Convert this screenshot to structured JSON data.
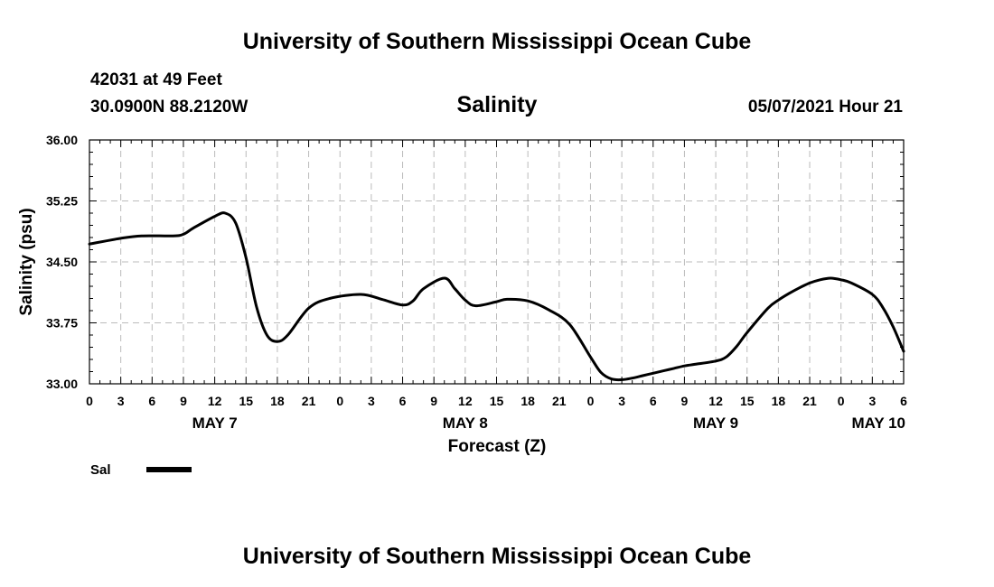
{
  "header": {
    "title": "University of Southern Mississippi Ocean Cube",
    "station": "42031 at 49 Feet",
    "coords": "30.0900N  88.2120W",
    "variable": "Salinity",
    "timestamp": "05/07/2021 Hour 21"
  },
  "footer": {
    "title": "University of Southern Mississippi Ocean Cube"
  },
  "chart_data": {
    "type": "line",
    "title": "Salinity",
    "xlabel": "Forecast (Z)",
    "ylabel": "Salinity (psu)",
    "ylim": [
      33.0,
      36.0
    ],
    "xlim": [
      0,
      78
    ],
    "x_unit": "hours from May 7 00Z",
    "y_ticks": [
      33.0,
      33.75,
      34.5,
      35.25,
      36.0
    ],
    "y_tick_labels": [
      "33.00",
      "33.75",
      "34.50",
      "35.25",
      "36.00"
    ],
    "x_ticks": [
      0,
      3,
      6,
      9,
      12,
      15,
      18,
      21,
      24,
      27,
      30,
      33,
      36,
      39,
      42,
      45,
      48,
      51,
      54,
      57,
      60,
      63,
      66,
      69,
      72,
      75,
      78
    ],
    "x_tick_labels": [
      "0",
      "3",
      "6",
      "9",
      "12",
      "15",
      "18",
      "21",
      "0",
      "3",
      "6",
      "9",
      "12",
      "15",
      "18",
      "21",
      "0",
      "3",
      "6",
      "9",
      "12",
      "15",
      "18",
      "21",
      "0",
      "3",
      "6"
    ],
    "date_labels": [
      {
        "hour": 12,
        "label": "MAY 7"
      },
      {
        "hour": 36,
        "label": "MAY 8"
      },
      {
        "hour": 60,
        "label": "MAY 9"
      },
      {
        "hour": 78,
        "label": "MAY 10"
      }
    ],
    "grid": true,
    "legend": [
      {
        "name": "Sal"
      }
    ],
    "series": [
      {
        "name": "Sal",
        "color": "#000000",
        "x": [
          0,
          3,
          5,
          8,
          9,
          10,
          12,
          13,
          14,
          15,
          16,
          17,
          18,
          19,
          21,
          23,
          26,
          28,
          30,
          31,
          32,
          34,
          35,
          36,
          37,
          39,
          40,
          42,
          44,
          46,
          48,
          49,
          50,
          51,
          52,
          53,
          54,
          55,
          56,
          57,
          58,
          60,
          61,
          62,
          63,
          65,
          66,
          67,
          68,
          69,
          70,
          71,
          72,
          73,
          75,
          76,
          77,
          78
        ],
        "y": [
          34.72,
          34.79,
          34.82,
          34.82,
          34.84,
          34.92,
          35.06,
          35.1,
          34.98,
          34.55,
          33.95,
          33.6,
          33.52,
          33.6,
          33.93,
          34.05,
          34.1,
          34.04,
          33.97,
          34.02,
          34.17,
          34.3,
          34.17,
          34.03,
          33.96,
          34.01,
          34.04,
          34.02,
          33.91,
          33.73,
          33.33,
          33.14,
          33.06,
          33.05,
          33.07,
          33.1,
          33.13,
          33.16,
          33.19,
          33.22,
          33.24,
          33.28,
          33.33,
          33.46,
          33.63,
          33.93,
          34.03,
          34.11,
          34.18,
          34.24,
          34.28,
          34.3,
          34.28,
          34.24,
          34.1,
          33.94,
          33.7,
          33.4
        ]
      }
    ]
  }
}
